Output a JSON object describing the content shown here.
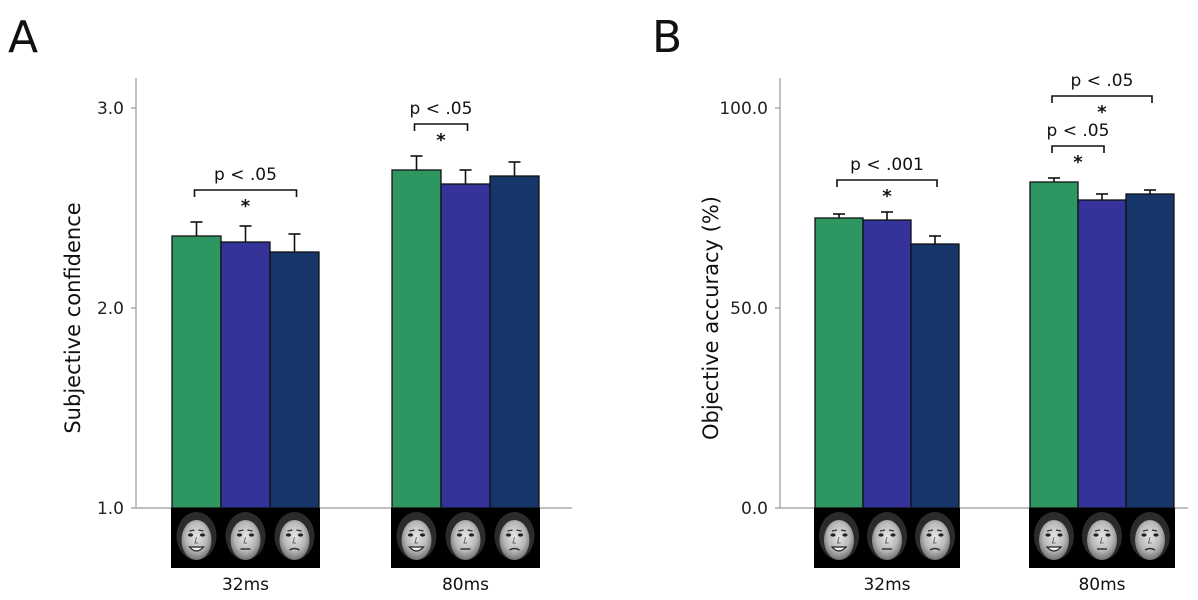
{
  "chart_data": [
    {
      "type": "bar",
      "panel_label": "A",
      "ylabel": "Subjective confidence",
      "ylim": [
        1.0,
        3.0
      ],
      "yticks": [
        "1.0",
        "2.0",
        "3.0"
      ],
      "categories": [
        "32ms",
        "80ms"
      ],
      "series": [
        {
          "icon": "happy-face-image",
          "color": "#2e9660",
          "values": [
            2.36,
            2.69
          ],
          "errors": [
            0.07,
            0.07
          ]
        },
        {
          "icon": "neutral-face-image",
          "color": "#333399",
          "values": [
            2.33,
            2.62
          ],
          "errors": [
            0.08,
            0.07
          ]
        },
        {
          "icon": "fearful-face-image",
          "color": "#163669",
          "values": [
            2.28,
            2.66
          ],
          "errors": [
            0.09,
            0.07
          ]
        }
      ],
      "comparisons": [
        {
          "category": 0,
          "from": 0,
          "to": 2,
          "label": "p < .05",
          "star": "*"
        },
        {
          "category": 1,
          "from": 0,
          "to": 1,
          "label": "p < .05",
          "star": "*"
        }
      ],
      "grid": false,
      "legend": "none"
    },
    {
      "type": "bar",
      "panel_label": "B",
      "ylabel": "Objective accuracy (%)",
      "ylim": [
        0.0,
        100.0
      ],
      "yticks": [
        "0.0",
        "50.0",
        "100.0"
      ],
      "categories": [
        "32ms",
        "80ms"
      ],
      "series": [
        {
          "icon": "happy-face-image",
          "color": "#2e9660",
          "values": [
            72.5,
            81.5
          ],
          "errors": [
            1.0,
            1.0
          ]
        },
        {
          "icon": "neutral-face-image",
          "color": "#333399",
          "values": [
            72.0,
            77.0
          ],
          "errors": [
            2.0,
            1.5
          ]
        },
        {
          "icon": "fearful-face-image",
          "color": "#163669",
          "values": [
            66.0,
            78.5
          ],
          "errors": [
            2.0,
            1.0
          ]
        }
      ],
      "comparisons": [
        {
          "category": 0,
          "from": 0,
          "to": 2,
          "label": "p < .001",
          "star": "*"
        },
        {
          "category": 1,
          "from": 0,
          "to": 1,
          "label": "p < .05",
          "star": "*"
        },
        {
          "category": 1,
          "from": 0,
          "to": 2,
          "label": "p < .05",
          "star": "*"
        }
      ],
      "grid": false,
      "legend": "none"
    }
  ]
}
